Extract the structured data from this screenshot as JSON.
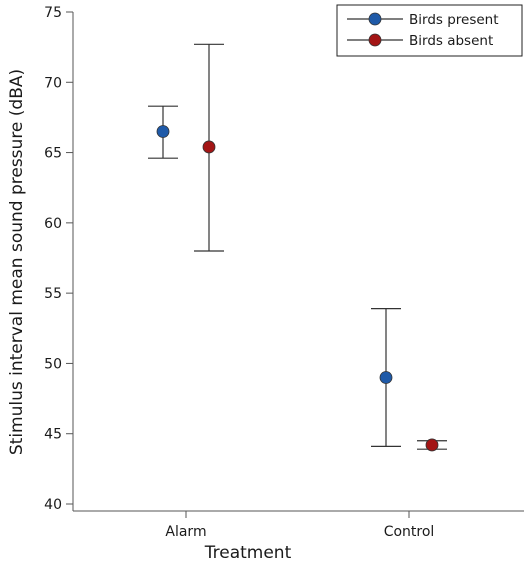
{
  "chart_data": {
    "type": "scatter",
    "subtype": "dot plot with error bars",
    "categories": [
      "Alarm",
      "Control"
    ],
    "xlabel": "Treatment",
    "ylabel": "Stimulus interval mean sound pressure (dBA)",
    "ylim": [
      40,
      75
    ],
    "yticks": [
      "40",
      "45",
      "50",
      "55",
      "60",
      "65",
      "70",
      "75"
    ],
    "grid": false,
    "legend_position": "top-right",
    "series": [
      {
        "name": "Birds present",
        "color": "#1f5aa8",
        "values": [
          66.5,
          49.0
        ],
        "err_low": [
          64.6,
          44.1
        ],
        "err_high": [
          68.3,
          53.9
        ]
      },
      {
        "name": "Birds absent",
        "color": "#a31515",
        "values": [
          65.4,
          44.2
        ],
        "err_low": [
          58.0,
          43.9
        ],
        "err_high": [
          72.7,
          44.5
        ]
      }
    ]
  }
}
